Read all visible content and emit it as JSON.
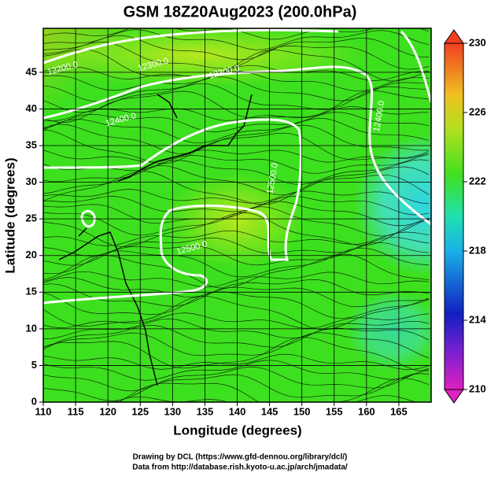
{
  "chart_data": {
    "type": "map",
    "title": "GSM 18Z20Aug2023 (200.0hPa)",
    "xlabel": "Longitude (degrees)",
    "ylabel": "Latitude  (degrees)",
    "xlim": [
      110,
      170
    ],
    "ylim": [
      0,
      51
    ],
    "xticks": [
      110,
      115,
      120,
      125,
      130,
      135,
      140,
      145,
      150,
      155,
      160,
      165
    ],
    "yticks": [
      0,
      5,
      10,
      15,
      20,
      25,
      30,
      35,
      40,
      45
    ],
    "grid": true,
    "colorbar": {
      "lim": [
        210,
        230
      ],
      "ticks": [
        210,
        214,
        218,
        222,
        226,
        230
      ]
    },
    "annotations": [
      {
        "text": "12200.0",
        "lon": 113,
        "lat": 45.5
      },
      {
        "text": "12300.0",
        "lon": 127,
        "lat": 46
      },
      {
        "text": "12300.0",
        "lon": 138,
        "lat": 45
      },
      {
        "text": "12400.0",
        "lon": 122,
        "lat": 38.5
      },
      {
        "text": "12400.0",
        "lon": 162,
        "lat": 39
      },
      {
        "text": "12500.0",
        "lon": 145.5,
        "lat": 30.5
      },
      {
        "text": "12500.0",
        "lon": 133,
        "lat": 21
      }
    ]
  },
  "footer": [
    "Drawing by DCL (https://www.gfd-dennou.org/library/dcl/)",
    "Data from http://database.rish.kyoto-u.ac.jp/arch/jmadata/"
  ]
}
